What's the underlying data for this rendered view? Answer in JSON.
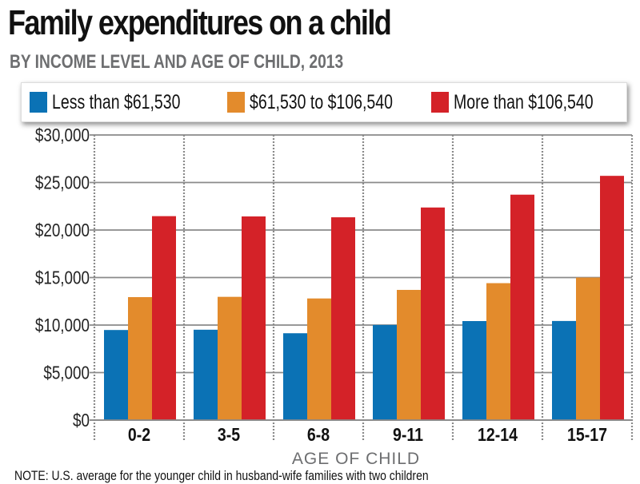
{
  "header": {
    "title": "Family expenditures on a child",
    "subtitle": "BY INCOME LEVEL AND AGE OF CHILD, 2013"
  },
  "legend": [
    {
      "label": "Less than $61,530",
      "color": "#0b72b5"
    },
    {
      "label": "$61,530 to $106,540",
      "color": "#e38b2c"
    },
    {
      "label": "More than $106,540",
      "color": "#d42228"
    }
  ],
  "note": "NOTE: U.S. average for the younger child in husband-wife families with two children",
  "chart_data": {
    "type": "bar",
    "title": "Family expenditures on a child",
    "subtitle": "BY INCOME LEVEL AND AGE OF CHILD, 2013",
    "xlabel": "AGE OF CHILD",
    "ylabel": "",
    "categories": [
      "0-2",
      "3-5",
      "6-8",
      "9-11",
      "12-14",
      "15-17"
    ],
    "series": [
      {
        "name": "Less than $61,530",
        "color": "#0b72b5",
        "values": [
          9480,
          9510,
          9140,
          10010,
          10420,
          10430
        ]
      },
      {
        "name": "$61,530 to $106,540",
        "color": "#e38b2c",
        "values": [
          12940,
          12970,
          12800,
          13700,
          14410,
          15000
        ]
      },
      {
        "name": "More than $106,540",
        "color": "#d42228",
        "values": [
          21460,
          21430,
          21340,
          22370,
          23720,
          25700
        ]
      }
    ],
    "ylim": [
      0,
      30000
    ],
    "yticks": [
      0,
      5000,
      10000,
      15000,
      20000,
      25000,
      30000
    ],
    "ytick_labels": [
      "$0",
      "$5,000",
      "$10,000",
      "$15,000",
      "$20,000",
      "$25,000",
      "$30,000"
    ],
    "grid": true,
    "legend_position": "top"
  }
}
